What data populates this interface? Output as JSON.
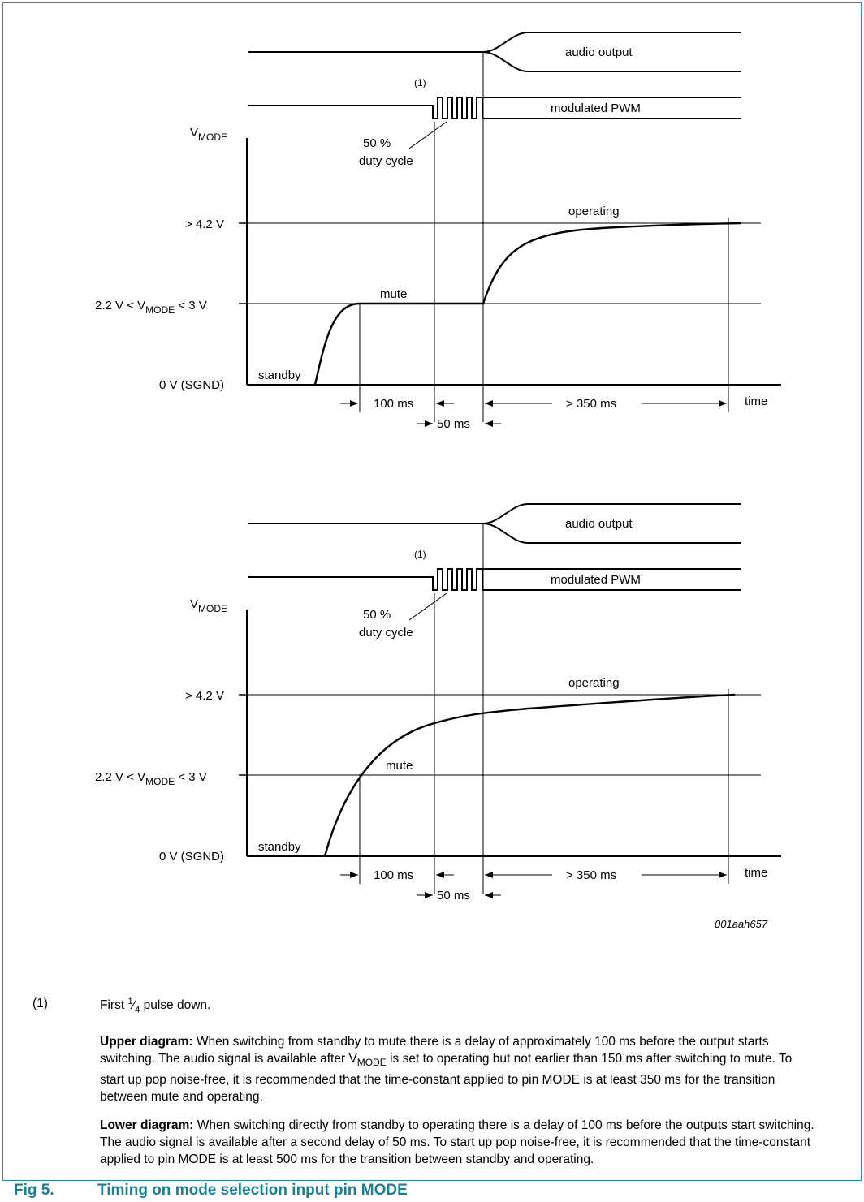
{
  "diagrams": [
    {
      "audio_label": "audio output",
      "pwm_label": "modulated PWM",
      "note_marker": "(1)",
      "duty_line1": "50 %",
      "duty_line2": "duty cycle",
      "vmode_main": "V",
      "vmode_sub": "MODE",
      "level_op": "> 4.2 V",
      "level_mute_a": "2.2 V < V",
      "level_mute_sub": "MODE",
      "level_mute_b": " < 3 V",
      "level_zero": "0 V (SGND)",
      "state_operating": "operating",
      "state_mute": "mute",
      "state_standby": "standby",
      "t_100": "100 ms",
      "t_50": "50 ms",
      "t_350": "> 350 ms",
      "time_label": "time"
    },
    {
      "audio_label": "audio output",
      "pwm_label": "modulated PWM",
      "note_marker": "(1)",
      "duty_line1": "50 %",
      "duty_line2": "duty cycle",
      "vmode_main": "V",
      "vmode_sub": "MODE",
      "level_op": "> 4.2 V",
      "level_mute_a": "2.2 V < V",
      "level_mute_sub": "MODE",
      "level_mute_b": " < 3 V",
      "level_zero": "0 V (SGND)",
      "state_operating": "operating",
      "state_mute": "mute",
      "state_standby": "standby",
      "t_100": "100 ms",
      "t_50": "50 ms",
      "t_350": "> 350 ms",
      "time_label": "time",
      "figure_code": "001aah657"
    }
  ],
  "footnote": {
    "number": "(1)",
    "text_a": "First ",
    "frac_num": "1",
    "frac_den": "4",
    "text_b": " pulse down."
  },
  "upper_note": {
    "title": "Upper diagram:",
    "text_a": " When switching from standby to mute there is a delay of approximately 100 ms before the output starts switching. The audio signal is available after V",
    "sub": "MODE",
    "text_b": " is set to operating but not earlier than 150 ms after switching to mute. To start up pop noise-free, it is recommended that the time-constant applied to pin MODE is at least 350 ms for the transition between mute and operating."
  },
  "lower_note": {
    "title": "Lower diagram:",
    "text": " When switching directly from standby to operating there is a delay of 100 ms before the outputs start switching. The audio signal is available after a second delay of 50 ms. To start up pop noise-free, it is recommended that the time-constant applied to pin MODE is at least 500 ms for the transition between standby and operating."
  },
  "caption": {
    "number": "Fig 5.",
    "title": "Timing on mode selection input pin MODE"
  },
  "colors": {
    "accent": "#1a7f93",
    "border": "#2a8a9a"
  }
}
